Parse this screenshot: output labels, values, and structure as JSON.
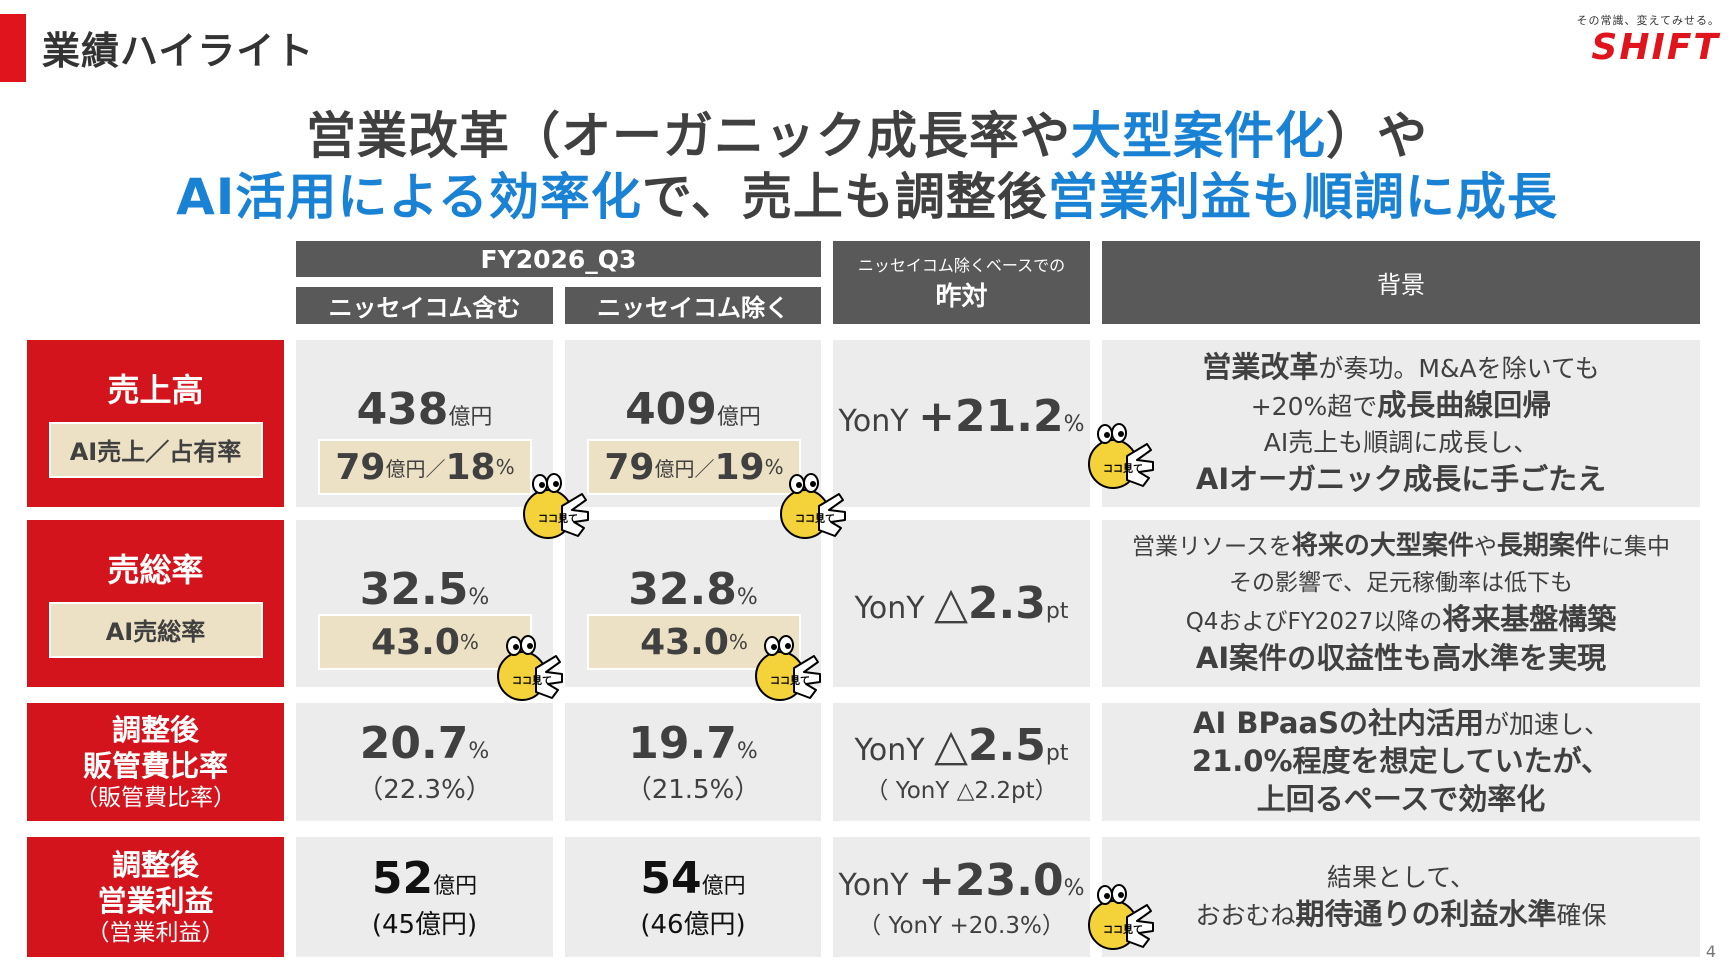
{
  "slide": {
    "title": "業績ハイライト",
    "logo_tagline": "その常識、変えてみせる。",
    "logo": "SHIFT",
    "page": "4"
  },
  "headline": {
    "l1_a": "営業改革（オーガニック成長率や",
    "l1_b": "大型案件化",
    "l1_c": "）や",
    "l2_a": "AI活用による効率化",
    "l2_b": "で、売上も調整後",
    "l2_c": "営業利益も順調に成長"
  },
  "header": {
    "period": "FY2026_Q3",
    "col_incl": "ニッセイコム含む",
    "col_excl": "ニッセイコム除く",
    "col_yoy_small": "ニッセイコム除くベースでの",
    "col_yoy": "昨対",
    "col_bg": "背景"
  },
  "rows": {
    "sales": {
      "label": "売上高",
      "sub": "AI売上／占有率",
      "incl_val": "438",
      "incl_unit": "億円",
      "incl_ai": "79",
      "incl_ai_unit": "億円／",
      "incl_ai_pct": "18",
      "pct": "%",
      "excl_val": "409",
      "excl_unit": "億円",
      "excl_ai": "79",
      "excl_ai_unit": "億円／",
      "excl_ai_pct": "19",
      "yoy_label": "YonY",
      "yoy_val": "+21.2",
      "yoy_unit": "%",
      "bg1_b": "営業改革",
      "bg1_n": "が奏功。M&Aを除いても",
      "bg2_n": "+20%超で",
      "bg2_b": "成長曲線回帰",
      "bg3": "AI売上も順調に成長し、",
      "bg4_b": "AIオーガニック成長に手ごたえ"
    },
    "gross": {
      "label": "売総率",
      "sub": "AI売総率",
      "incl_val": "32.5",
      "excl_val": "32.8",
      "unit": "%",
      "incl_ai": "43.0",
      "excl_ai": "43.0",
      "yoy_label": "YonY",
      "yoy_val": "△2.3",
      "yoy_unit": "pt",
      "bg1_n": "営業リソースを",
      "bg1_b1": "将来の大型案件",
      "bg1_n2": "や",
      "bg1_b2": "長期案件",
      "bg1_n3": "に集中",
      "bg2": "その影響で、足元稼働率は低下も",
      "bg3_n": "Q4およびFY2027以降の",
      "bg3_b": "将来基盤構築",
      "bg4_b": "AI案件の収益性も高水準を実現"
    },
    "sga": {
      "label1": "調整後",
      "label2": "販管費比率",
      "sub": "（販管費比率）",
      "incl_val": "20.7",
      "excl_val": "19.7",
      "unit": "%",
      "incl_paren": "（22.3%）",
      "excl_paren": "（21.5%）",
      "yoy_label": "YonY",
      "yoy_val": "△2.5",
      "yoy_unit": "pt",
      "yoy_paren": "（ YonY △2.2pt）",
      "bg1_b": "AI BPaaSの社内活用",
      "bg1_n": "が加速し、",
      "bg2_b": "21.0%程度を想定していたが、",
      "bg3_b": "上回るペースで効率化"
    },
    "op": {
      "label1": "調整後",
      "label2": "営業利益",
      "sub": "（営業利益）",
      "incl_val": "52",
      "excl_val": "54",
      "unit": "億円",
      "incl_paren": "(45億円)",
      "excl_paren": "(46億円)",
      "yoy_label": "YonY",
      "yoy_val": "+23.0",
      "yoy_unit": "%",
      "yoy_paren": "（ YonY +20.3%）",
      "bg1": "結果として、",
      "bg2_n": "おおむね",
      "bg2_b": "期待通りの利益水準",
      "bg2_n2": "確保"
    }
  },
  "mascot_text": "ココ見て",
  "colors": {
    "accent_red": "#d4141c",
    "accent_blue": "#1a82d4",
    "header_gray": "#595959",
    "cell_gray": "#ececec",
    "beige": "#ece1c4"
  }
}
